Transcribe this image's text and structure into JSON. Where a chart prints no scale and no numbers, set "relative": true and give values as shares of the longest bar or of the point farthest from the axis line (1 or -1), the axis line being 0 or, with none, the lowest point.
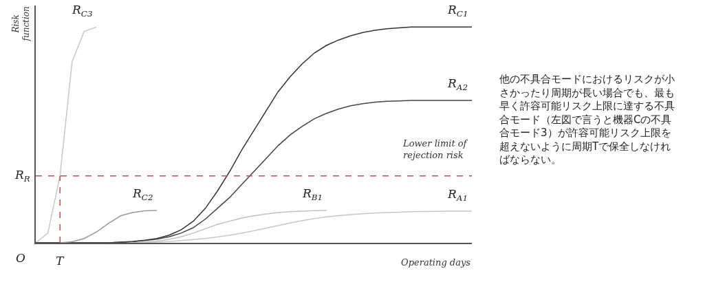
{
  "chart_data": {
    "type": "line",
    "relative": true,
    "xlabel": "Operating days",
    "ylabel": "Risk\nfunction",
    "categories": [
      null,
      null,
      null,
      null,
      null,
      null,
      null,
      null,
      null,
      null,
      null,
      null,
      null,
      null,
      null,
      null,
      null,
      null,
      null,
      null,
      null,
      null,
      null,
      null,
      null,
      null,
      null,
      null,
      null,
      null,
      null,
      null,
      null,
      null,
      null,
      null,
      null
    ],
    "series": [
      {
        "name": "R$_{C3}$",
        "color": "#c8c8c8",
        "values": [
          0,
          0.045,
          0.31,
          0.84,
          0.98,
          1.0,
          null,
          null,
          null,
          null,
          null,
          null,
          null,
          null,
          null,
          null,
          null,
          null,
          null,
          null,
          null,
          null,
          null,
          null,
          null,
          null,
          null,
          null,
          null,
          null,
          null,
          null,
          null,
          null,
          null,
          null,
          null
        ]
      },
      {
        "name": "R$_{C1}$",
        "color": "#333333",
        "values": [
          0,
          0,
          0,
          0,
          0,
          0,
          0,
          0.003,
          0.006,
          0.012,
          0.02,
          0.035,
          0.06,
          0.1,
          0.16,
          0.24,
          0.33,
          0.43,
          0.52,
          0.61,
          0.7,
          0.77,
          0.83,
          0.88,
          0.915,
          0.94,
          0.96,
          0.975,
          0.985,
          0.992,
          0.996,
          1.0,
          1.0,
          1.0,
          1.0,
          1.0,
          1.0
        ]
      },
      {
        "name": "R$_{A2}$",
        "color": "#444444",
        "values": [
          0,
          0,
          0,
          0,
          0,
          0,
          0,
          0.002,
          0.005,
          0.01,
          0.017,
          0.028,
          0.045,
          0.07,
          0.11,
          0.16,
          0.21,
          0.27,
          0.33,
          0.39,
          0.45,
          0.5,
          0.54,
          0.575,
          0.6,
          0.62,
          0.635,
          0.645,
          0.652,
          0.656,
          0.658,
          0.66,
          0.66,
          0.66,
          0.66,
          0.66,
          0.66
        ]
      },
      {
        "name": "R$_{C2}$",
        "color": "#999999",
        "values": [
          null,
          null,
          0,
          0.005,
          0.02,
          0.05,
          0.09,
          0.125,
          0.14,
          0.148,
          0.15,
          null,
          null,
          null,
          null,
          null,
          null,
          null,
          null,
          null,
          null,
          null,
          null,
          null,
          null,
          null,
          null,
          null,
          null,
          null,
          null,
          null,
          null,
          null,
          null,
          null,
          null
        ]
      },
      {
        "name": "R$_{B1}$",
        "color": "#c0c0c0",
        "values": [
          null,
          null,
          null,
          null,
          null,
          null,
          null,
          null,
          0,
          0.003,
          0.008,
          0.016,
          0.028,
          0.045,
          0.065,
          0.085,
          0.1,
          0.115,
          0.125,
          0.133,
          0.14,
          0.144,
          0.147,
          0.149,
          0.15,
          null,
          null,
          null,
          null,
          null,
          null,
          null,
          null,
          null,
          null,
          null,
          null
        ]
      },
      {
        "name": "R$_{A1}$",
        "color": "#c8c8c8",
        "values": [
          null,
          null,
          null,
          null,
          null,
          null,
          null,
          null,
          null,
          0,
          0.003,
          0.006,
          0.01,
          0.015,
          0.02,
          0.027,
          0.035,
          0.045,
          0.056,
          0.068,
          0.08,
          0.092,
          0.103,
          0.112,
          0.12,
          0.126,
          0.131,
          0.135,
          0.138,
          0.14,
          0.142,
          0.144,
          0.145,
          0.146,
          0.147,
          0.147,
          0.147
        ]
      }
    ],
    "ref_lines": [
      {
        "axis": "y",
        "value": 0.31,
        "label": "R$_{R}$",
        "color": "#d04848",
        "line_style": "dashed"
      }
    ],
    "annotations": [
      "Lower limit of\nrejection risk",
      "O",
      "T",
      "他の不具合モードにおけるリスクが小さかったり周期が長い場合でも、最も早く許容可能リスク上限に達する不具合モード（左図で言うと機器Cの不具合モード3）が許容可能リスク上限を超えないように周期Tで保全しなければならない。"
    ]
  }
}
